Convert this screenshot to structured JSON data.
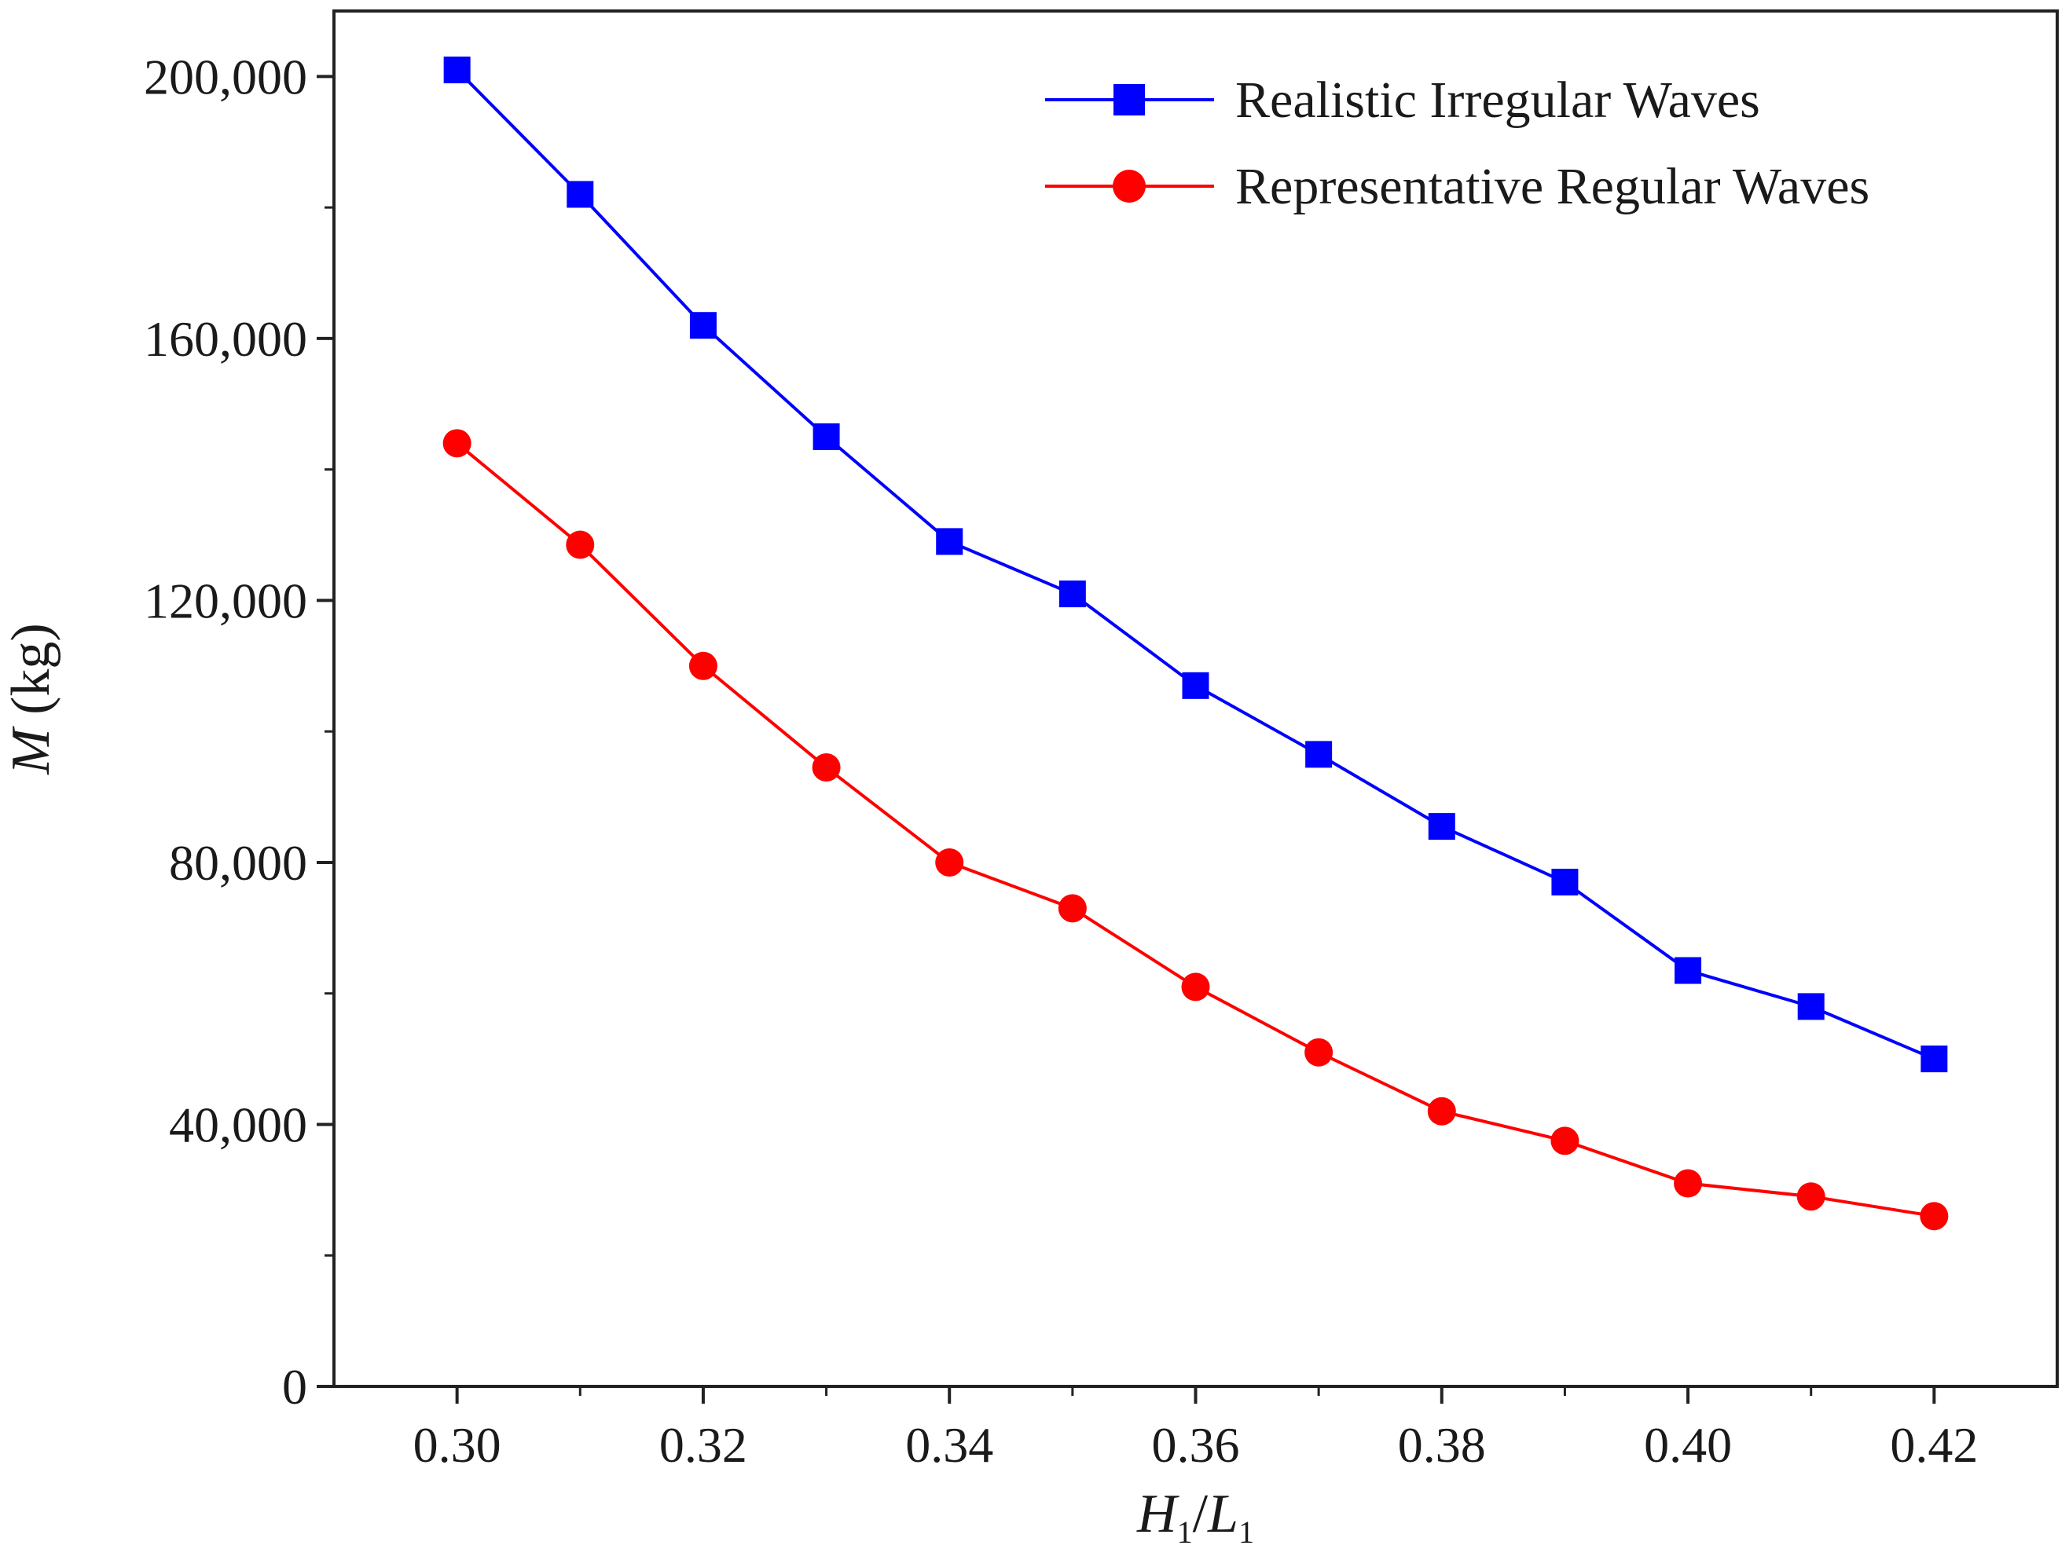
{
  "chart_data": {
    "type": "line",
    "title": "",
    "xlabel": {
      "main": "H",
      "sub1": "1",
      "sep": "/",
      "main2": "L",
      "sub2": "1"
    },
    "ylabel": {
      "var": "M",
      "unit": " (kg)"
    },
    "xlim": [
      0.29,
      0.43
    ],
    "ylim": [
      0,
      210000
    ],
    "x": [
      0.3,
      0.31,
      0.32,
      0.33,
      0.34,
      0.35,
      0.36,
      0.37,
      0.38,
      0.39,
      0.4,
      0.41,
      0.42
    ],
    "x_ticks": [
      0.3,
      0.32,
      0.34,
      0.36,
      0.38,
      0.4,
      0.42
    ],
    "x_tick_labels": [
      "0.30",
      "0.32",
      "0.34",
      "0.36",
      "0.38",
      "0.40",
      "0.42"
    ],
    "y_ticks_major": [
      0,
      40000,
      80000,
      120000,
      160000,
      200000
    ],
    "y_tick_labels": [
      "0",
      "40,000",
      "80,000",
      "120,000",
      "160,000",
      "200,000"
    ],
    "y_ticks_minor": [
      20000,
      60000,
      100000,
      140000,
      180000
    ],
    "legend_position": "top-right",
    "series": [
      {
        "name": "Realistic Irregular Waves",
        "color": "#0000ff",
        "marker": "square",
        "values": [
          201000,
          182000,
          162000,
          145000,
          129000,
          121000,
          107000,
          96500,
          85500,
          77000,
          63500,
          58000,
          50000
        ]
      },
      {
        "name": "Representative Regular Waves",
        "color": "#ff0000",
        "marker": "circle",
        "values": [
          144000,
          128500,
          110000,
          94500,
          80000,
          73000,
          61000,
          51000,
          42000,
          37500,
          31000,
          29000,
          26000
        ]
      }
    ]
  }
}
